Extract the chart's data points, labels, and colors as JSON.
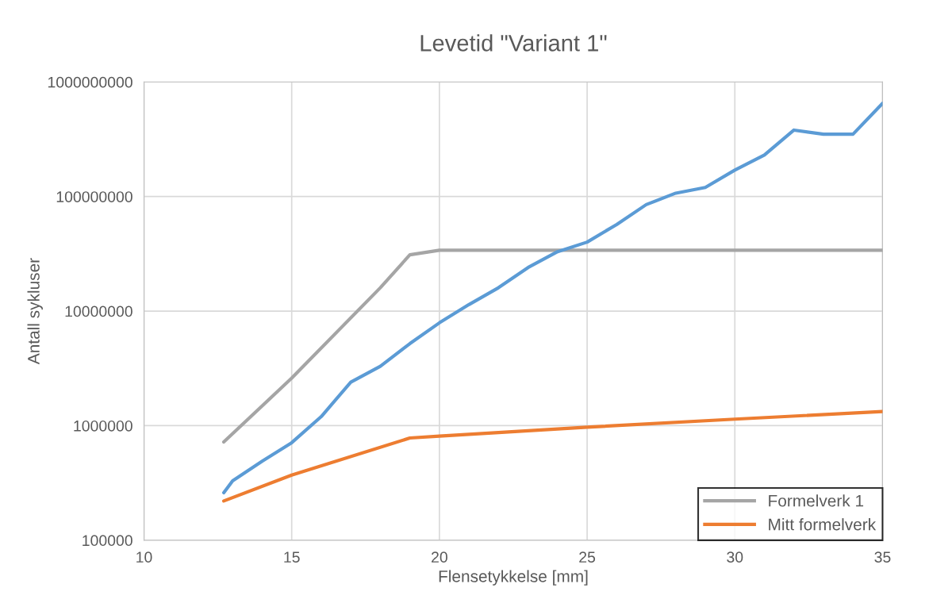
{
  "chart_data": {
    "type": "line",
    "title": "Levetid \"Variant 1\"",
    "xlabel": "Flensetykkelse [mm]",
    "ylabel": "Antall sykluser",
    "series": [
      {
        "name": "Formelverk 1",
        "color": "#a5a5a5",
        "x": [
          12.7,
          15,
          18,
          19,
          20,
          25,
          30,
          35
        ],
        "values": [
          720000,
          2600000,
          16000000,
          31000000,
          34000000,
          34000000,
          34000000,
          34000000
        ]
      },
      {
        "name": "Mitt formelverk",
        "color": "#ed7d31",
        "x": [
          12.7,
          15,
          19,
          20,
          25,
          30,
          35
        ],
        "values": [
          220000,
          370000,
          780000,
          810000,
          970000,
          1140000,
          1330000
        ]
      },
      {
        "color": "#5b9bd5",
        "x": [
          12.7,
          13,
          14,
          15,
          16,
          17,
          18,
          19,
          20,
          21,
          22,
          23,
          24,
          25,
          26,
          27,
          28,
          29,
          30,
          31,
          32,
          33,
          34,
          35
        ],
        "values": [
          260000,
          330000,
          490000,
          710000,
          1200000,
          2400000,
          3300000,
          5200000,
          7900000,
          11400000,
          16000000,
          24000000,
          33000000,
          40000000,
          57000000,
          85000000,
          107000000,
          120000000,
          170000000,
          230000000,
          380000000,
          350000000,
          350000000,
          650000000
        ]
      }
    ],
    "log": "y",
    "xlim": [
      10,
      35
    ],
    "xticks": [
      10,
      15,
      20,
      25,
      30,
      35
    ],
    "ylim": [
      100000,
      1000000000
    ],
    "yticks": [
      100000,
      1000000,
      10000000,
      100000000,
      1000000000
    ],
    "grid": true,
    "legend": "bottom right",
    "line_style": "solid",
    "marker": "none"
  }
}
